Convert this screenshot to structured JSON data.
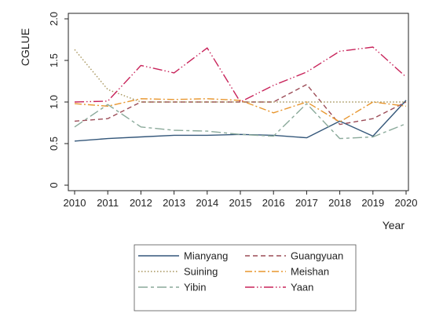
{
  "chart_data": {
    "type": "line",
    "title": "",
    "xlabel": "Year",
    "ylabel": "CGLUE",
    "x": [
      2010,
      2011,
      2012,
      2013,
      2014,
      2015,
      2016,
      2017,
      2018,
      2019,
      2020
    ],
    "xlim": [
      2010,
      2020
    ],
    "ylim": [
      0,
      2.0
    ],
    "yticks": [
      "0",
      "0.5",
      "1.0",
      "1.5",
      "2.0"
    ],
    "grid": false,
    "legend_position": "bottom",
    "series": [
      {
        "name": "Mianyang",
        "color": "#34577a",
        "values": [
          0.53,
          0.56,
          0.58,
          0.6,
          0.6,
          0.61,
          0.6,
          0.57,
          0.77,
          0.59,
          1.02
        ]
      },
      {
        "name": "Guangyuan",
        "color": "#9c4c57",
        "values": [
          0.77,
          0.8,
          1.0,
          1.0,
          1.0,
          1.0,
          1.0,
          1.21,
          0.73,
          0.8,
          1.0
        ]
      },
      {
        "name": "Suining",
        "color": "#a5935a",
        "values": [
          1.63,
          1.15,
          1.0,
          1.0,
          1.0,
          1.0,
          1.0,
          1.0,
          1.0,
          1.0,
          1.0
        ]
      },
      {
        "name": "Meishan",
        "color": "#e8962e",
        "values": [
          0.98,
          0.95,
          1.04,
          1.03,
          1.04,
          1.02,
          0.87,
          1.0,
          0.76,
          1.0,
          0.95
        ]
      },
      {
        "name": "Yibin",
        "color": "#8aa99a",
        "values": [
          0.7,
          0.97,
          0.7,
          0.66,
          0.65,
          0.61,
          0.59,
          0.98,
          0.56,
          0.58,
          0.74
        ]
      },
      {
        "name": "Yaan",
        "color": "#c8235a",
        "values": [
          1.0,
          1.01,
          1.44,
          1.35,
          1.65,
          1.0,
          1.2,
          1.36,
          1.61,
          1.66,
          1.3
        ]
      }
    ]
  }
}
